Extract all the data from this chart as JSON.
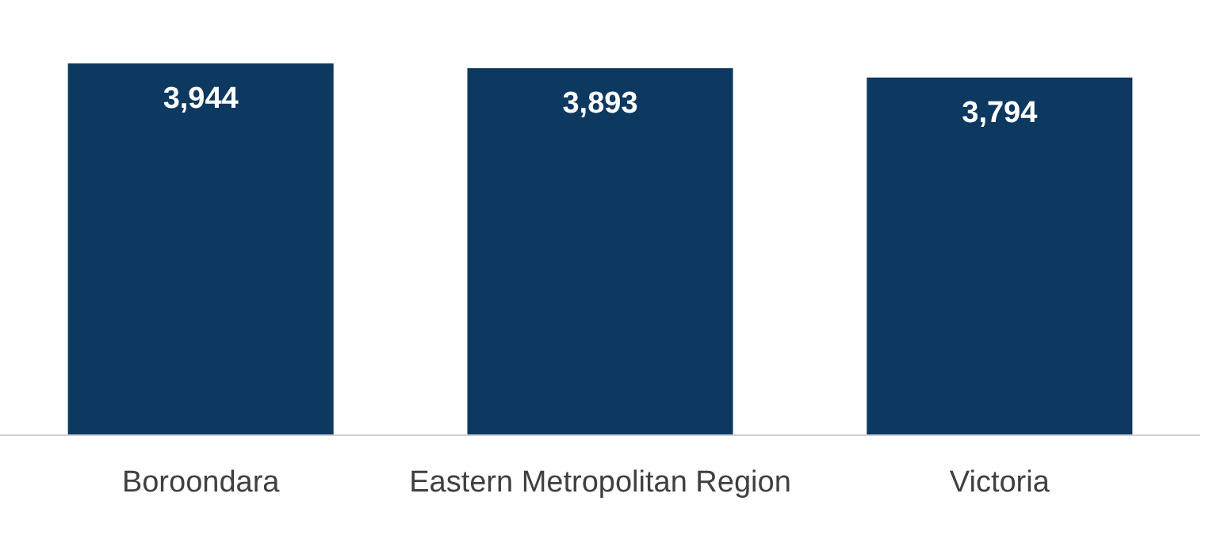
{
  "chart_data": {
    "type": "bar",
    "categories": [
      "Boroondara",
      "Eastern Metropolitan Region",
      "Victoria"
    ],
    "values": [
      3944,
      3893,
      3794
    ],
    "value_labels": [
      "3,944",
      "3,893",
      "3,794"
    ],
    "color": "#0d3860"
  }
}
